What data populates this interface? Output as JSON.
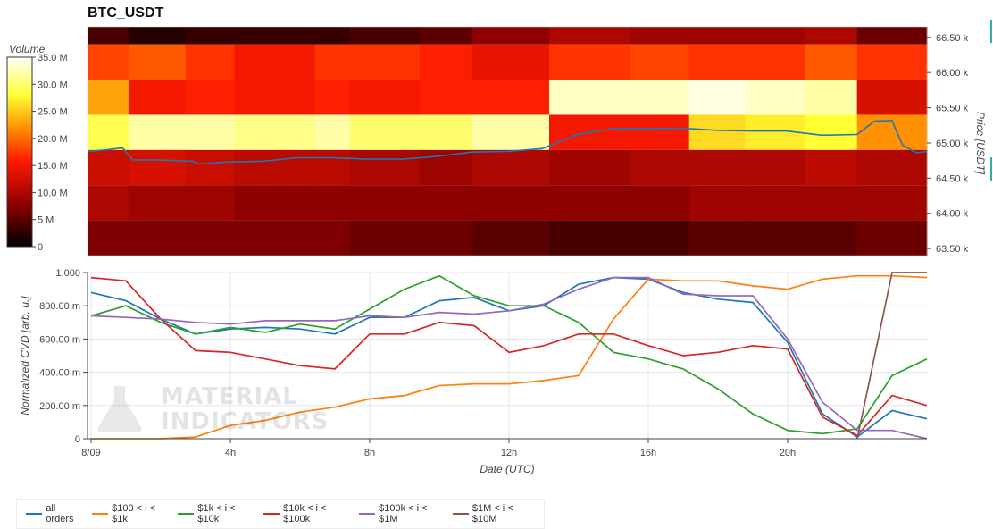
{
  "title": "BTC_USDT",
  "colors": {
    "all_orders": "#1f77b4",
    "s100_1k": "#ff7f0e",
    "s1k_10k": "#2ca02c",
    "s10k_100k": "#d62728",
    "s100k_1m": "#9467bd",
    "s1m_10m": "#8c564b"
  },
  "watermark": {
    "line1": "MATERIAL",
    "line2": "INDICATORS"
  },
  "chart_data": [
    {
      "type": "heatmap",
      "title": "BTC_USDT",
      "ylabel": "Price [USDT]",
      "colorbar_label": "Volume",
      "colorbar_ticks": [
        "0",
        "5 M",
        "10.0 M",
        "15.0 M",
        "20.0 M",
        "25.0 M",
        "30.0 M",
        "35.0 M"
      ],
      "colorbar_range": [
        0,
        35000000
      ],
      "y_ticks": [
        "63.50 k",
        "64.00 k",
        "64.50 k",
        "65.00 k",
        "65.50 k",
        "66.00 k",
        "66.50 k"
      ],
      "y_tick_values": [
        63500,
        64000,
        64500,
        65000,
        65500,
        66000,
        66500
      ],
      "ylim": [
        63400,
        66650
      ],
      "price_bins": [
        66400,
        65900,
        65400,
        64900,
        64400,
        63900,
        63400
      ],
      "time_ranges_h": [
        [
          0,
          1.2
        ],
        [
          1.2,
          2.8
        ],
        [
          2.8,
          4.2
        ],
        [
          4.2,
          6.5
        ],
        [
          6.5,
          7.5
        ],
        [
          7.5,
          9.5
        ],
        [
          9.5,
          11.0
        ],
        [
          11.0,
          13.2
        ],
        [
          13.2,
          15.5
        ],
        [
          15.5,
          17.2
        ],
        [
          17.2,
          18.8
        ],
        [
          18.8,
          20.5
        ],
        [
          20.5,
          22.0
        ],
        [
          22.0,
          24.0
        ]
      ],
      "volume_matrix_M": [
        [
          4,
          2,
          3,
          3,
          3,
          4,
          5,
          8,
          10,
          9,
          9,
          9,
          10,
          6
        ],
        [
          18,
          19,
          17,
          15,
          17,
          17,
          16,
          14,
          17,
          18,
          17,
          17,
          19,
          17
        ],
        [
          23,
          15,
          16,
          15,
          16,
          15,
          16,
          16,
          33,
          33,
          34,
          33,
          32,
          13
        ],
        [
          29,
          32,
          32,
          31,
          32,
          30,
          30,
          32,
          15,
          15,
          26,
          27,
          28,
          22
        ],
        [
          12,
          13,
          12,
          11,
          11,
          10,
          9,
          10,
          9,
          10,
          10,
          10,
          11,
          10
        ],
        [
          10,
          9,
          9,
          8,
          8,
          8,
          8,
          8,
          8,
          8,
          9,
          9,
          9,
          9
        ],
        [
          7,
          7,
          7,
          7,
          7,
          6,
          6,
          5,
          4,
          4,
          5,
          5,
          5,
          6
        ]
      ],
      "series": [
        {
          "name": "price",
          "x_h": [
            0,
            0.5,
            1,
            1.3,
            2,
            3,
            3.2,
            4,
            5,
            6,
            7,
            8,
            9,
            10,
            11,
            12,
            13,
            13.5,
            14,
            15,
            16,
            17,
            18,
            19,
            20,
            21,
            22,
            22.5,
            23,
            23.3,
            23.7,
            24
          ],
          "y": [
            64880,
            64900,
            64930,
            64760,
            64760,
            64740,
            64700,
            64730,
            64740,
            64790,
            64790,
            64770,
            64770,
            64810,
            64870,
            64880,
            64920,
            65020,
            65120,
            65200,
            65200,
            65210,
            65180,
            65170,
            65170,
            65110,
            65120,
            65310,
            65320,
            64970,
            64860,
            64880
          ]
        }
      ]
    },
    {
      "type": "line",
      "xlabel": "Date (UTC)",
      "ylabel": "Normalized CVD [arb. u.]",
      "x_ticks": [
        "8/09",
        "4h",
        "8h",
        "12h",
        "16h",
        "20h"
      ],
      "x_tick_hours": [
        0,
        4,
        8,
        12,
        16,
        20
      ],
      "xlim": [
        0,
        24
      ],
      "y_ticks": [
        "0",
        "200.00 m",
        "400.00 m",
        "600.00 m",
        "800.00 m",
        "1.000"
      ],
      "y_tick_values": [
        0,
        0.2,
        0.4,
        0.6,
        0.8,
        1.0
      ],
      "ylim": [
        0,
        1.0
      ],
      "x_h": [
        0,
        1,
        2,
        3,
        4,
        5,
        6,
        7,
        8,
        9,
        10,
        11,
        12,
        13,
        14,
        15,
        16,
        17,
        18,
        19,
        20,
        21,
        22,
        23,
        24
      ],
      "series": [
        {
          "name": "all orders",
          "color_key": "all_orders",
          "values": [
            0.88,
            0.83,
            0.72,
            0.63,
            0.66,
            0.67,
            0.66,
            0.63,
            0.73,
            0.73,
            0.83,
            0.85,
            0.77,
            0.8,
            0.93,
            0.97,
            0.96,
            0.88,
            0.84,
            0.82,
            0.58,
            0.15,
            0.01,
            0.17,
            0.12
          ]
        },
        {
          "name": "$100 < i < $1k",
          "color_key": "s100_1k",
          "values": [
            0.0,
            0.0,
            0.0,
            0.01,
            0.08,
            0.11,
            0.16,
            0.19,
            0.24,
            0.26,
            0.32,
            0.33,
            0.33,
            0.35,
            0.38,
            0.72,
            0.96,
            0.95,
            0.95,
            0.92,
            0.9,
            0.96,
            0.98,
            0.98,
            0.97
          ]
        },
        {
          "name": "$1k < i < $10k",
          "color_key": "s1k_10k",
          "values": [
            0.74,
            0.8,
            0.7,
            0.63,
            0.67,
            0.64,
            0.69,
            0.66,
            0.78,
            0.9,
            0.98,
            0.86,
            0.8,
            0.8,
            0.7,
            0.52,
            0.48,
            0.42,
            0.3,
            0.15,
            0.05,
            0.03,
            0.06,
            0.38,
            0.48
          ]
        },
        {
          "name": "$10k < i < $100k",
          "color_key": "s10k_100k",
          "values": [
            0.97,
            0.95,
            0.72,
            0.53,
            0.52,
            0.48,
            0.44,
            0.42,
            0.63,
            0.63,
            0.7,
            0.68,
            0.52,
            0.56,
            0.63,
            0.63,
            0.56,
            0.5,
            0.52,
            0.56,
            0.54,
            0.13,
            0.02,
            0.26,
            0.2
          ]
        },
        {
          "name": "$100k < i < $1M",
          "color_key": "s100k_1m",
          "values": [
            0.74,
            0.73,
            0.72,
            0.7,
            0.69,
            0.71,
            0.71,
            0.71,
            0.74,
            0.73,
            0.76,
            0.75,
            0.77,
            0.81,
            0.9,
            0.97,
            0.97,
            0.87,
            0.86,
            0.86,
            0.6,
            0.22,
            0.05,
            0.05,
            0.0
          ]
        },
        {
          "name": "$1M < i < $10M",
          "color_key": "s1m_10m",
          "values": [
            null,
            null,
            null,
            null,
            null,
            null,
            null,
            null,
            null,
            null,
            null,
            null,
            null,
            null,
            null,
            null,
            null,
            null,
            null,
            null,
            null,
            null,
            0.0,
            1.0,
            1.0
          ]
        }
      ]
    }
  ],
  "legend": [
    {
      "label": "all orders",
      "color_key": "all_orders"
    },
    {
      "label": "$100 < i < $1k",
      "color_key": "s100_1k"
    },
    {
      "label": "$1k < i < $10k",
      "color_key": "s1k_10k"
    },
    {
      "label": "$10k < i < $100k",
      "color_key": "s10k_100k"
    },
    {
      "label": "$100k < i < $1M",
      "color_key": "s100k_1m"
    },
    {
      "label": "$1M < i < $10M",
      "color_key": "s1m_10m"
    }
  ]
}
